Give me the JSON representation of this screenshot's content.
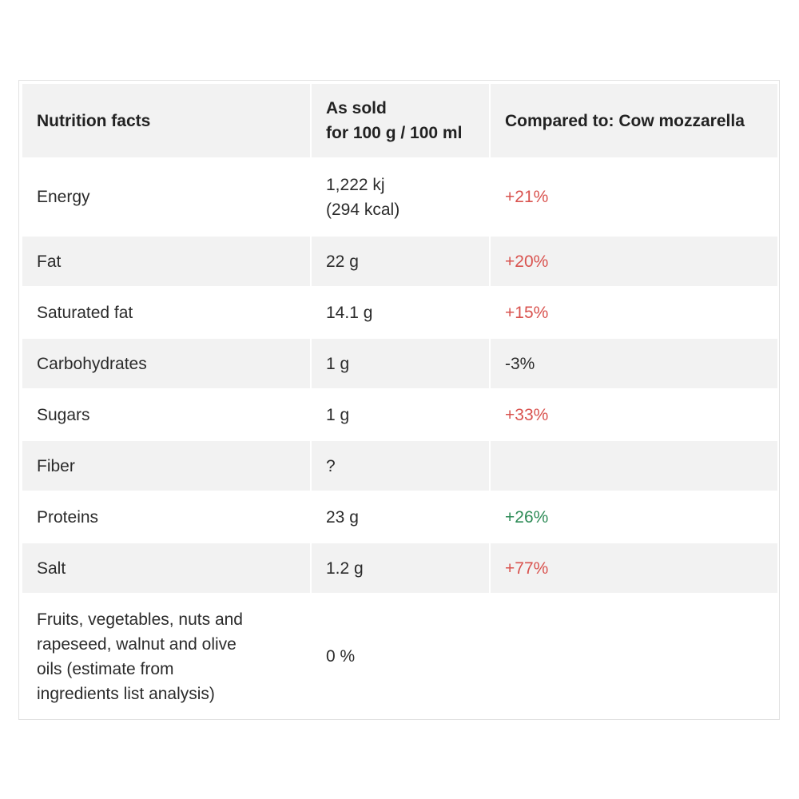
{
  "header": {
    "col1": "Nutrition facts",
    "col2_line1": "As sold",
    "col2_line2": "for 100 g / 100 ml",
    "col3": "Compared to: Cow mozzarella"
  },
  "rows": [
    {
      "label": "Energy",
      "value_line1": "1,222 kj",
      "value_line2": "(294 kcal)",
      "compare": "+21%"
    },
    {
      "label": "Fat",
      "value": "22 g",
      "compare": "+20%"
    },
    {
      "label": "Saturated fat",
      "value": "14.1 g",
      "compare": "+15%"
    },
    {
      "label": "Carbohydrates",
      "value": "1 g",
      "compare": "-3%"
    },
    {
      "label": "Sugars",
      "value": "1 g",
      "compare": "+33%"
    },
    {
      "label": "Fiber",
      "value": "?",
      "compare": ""
    },
    {
      "label": "Proteins",
      "value": "23 g",
      "compare": "+26%"
    },
    {
      "label": "Salt",
      "value": "1.2 g",
      "compare": "+77%"
    },
    {
      "label_line1": "Fruits, vegetables, nuts and",
      "label_line2": "rapeseed, walnut and olive",
      "label_line3": "oils (estimate from",
      "label_line4": "ingredients list analysis)",
      "value": "0 %",
      "compare": ""
    }
  ],
  "colors": {
    "worse": "#d9534f",
    "better": "#2e8b57",
    "header_bg": "#f2f2f2"
  }
}
